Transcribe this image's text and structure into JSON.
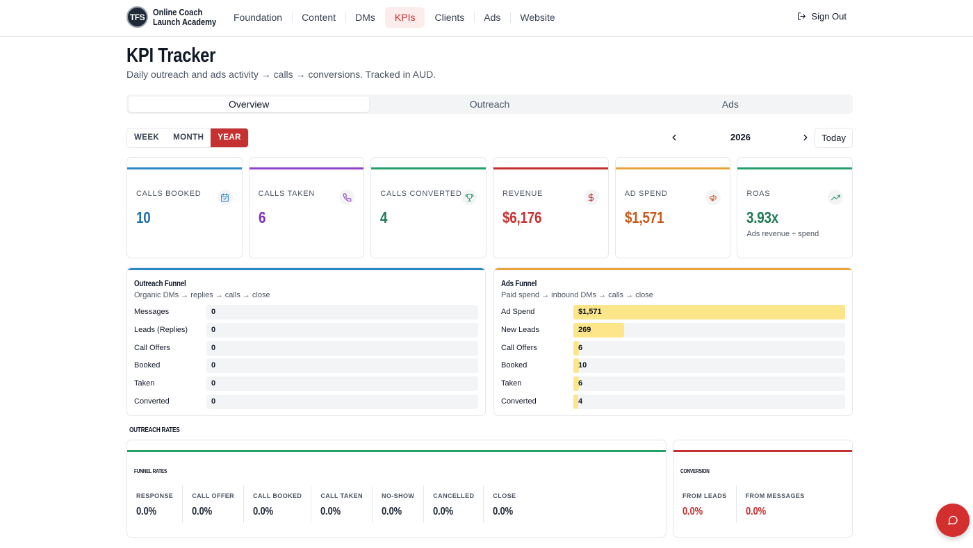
{
  "brand": {
    "badge": "TFS",
    "line1": "Online Coach",
    "line2": "Launch Academy"
  },
  "nav": [
    "Foundation",
    "Content",
    "DMs",
    "KPIs",
    "Clients",
    "Ads",
    "Website"
  ],
  "nav_active": "KPIs",
  "signout_label": "Sign Out",
  "page": {
    "title": "KPI Tracker",
    "subtitle": "Daily outreach and ads activity → calls → conversions. Tracked in AUD."
  },
  "tabs": [
    "Overview",
    "Outreach",
    "Ads"
  ],
  "tab_active": "Overview",
  "period": {
    "options": [
      "WEEK",
      "MONTH",
      "YEAR"
    ],
    "active": "YEAR",
    "year": "2026",
    "today_label": "Today"
  },
  "kpis": [
    {
      "label": "CALLS BOOKED",
      "value": "10",
      "color": "#2b8ac6",
      "icon": "calendar-check-icon",
      "note": ""
    },
    {
      "label": "CALLS TAKEN",
      "value": "6",
      "color": "#8e44c9",
      "icon": "phone-icon",
      "note": ""
    },
    {
      "label": "CALLS CONVERTED",
      "value": "4",
      "color": "#25a06a",
      "icon": "trophy-icon",
      "note": ""
    },
    {
      "label": "REVENUE",
      "value": "$6,176",
      "color": "#c53030",
      "icon": "dollar-icon",
      "note": ""
    },
    {
      "label": "AD SPEND",
      "value": "$1,571",
      "color": "#e8a33c",
      "icon": "megaphone-icon",
      "note": ""
    },
    {
      "label": "ROAS",
      "value": "3.93x",
      "color": "#25a06a",
      "icon": "trending-up-icon",
      "note": "Ads revenue ÷ spend"
    }
  ],
  "kpi_value_colors": [
    "#1f6fb0",
    "#7b2fb5",
    "#1e7a55",
    "#c53030",
    "#c8581a",
    "#1e7a55"
  ],
  "outreach_funnel": {
    "title": "Outreach Funnel",
    "subtitle": "Organic DMs → replies → calls → close",
    "color": "#2b8ac6",
    "rows": [
      {
        "label": "Messages",
        "value": "0",
        "fill": 0
      },
      {
        "label": "Leads (Replies)",
        "value": "0",
        "fill": 0
      },
      {
        "label": "Call Offers",
        "value": "0",
        "fill": 0
      },
      {
        "label": "Booked",
        "value": "0",
        "fill": 0
      },
      {
        "label": "Taken",
        "value": "0",
        "fill": 0
      },
      {
        "label": "Converted",
        "value": "0",
        "fill": 0
      }
    ]
  },
  "ads_funnel": {
    "title": "Ads Funnel",
    "subtitle": "Paid spend → inbound DMs → calls → close",
    "color": "#e8a33c",
    "rows": [
      {
        "label": "Ad Spend",
        "value": "$1,571",
        "fill": 1.0
      },
      {
        "label": "New Leads",
        "value": "269",
        "fill": 0.171
      },
      {
        "label": "Call Offers",
        "value": "6",
        "fill": 0.004
      },
      {
        "label": "Booked",
        "value": "10",
        "fill": 0.006
      },
      {
        "label": "Taken",
        "value": "6",
        "fill": 0.004
      },
      {
        "label": "Converted",
        "value": "4",
        "fill": 0.003
      }
    ]
  },
  "rates_section_label": "OUTREACH RATES",
  "funnel_rates": {
    "title": "FUNNEL RATES",
    "color": "#25a06a",
    "items": [
      {
        "label": "RESPONSE",
        "value": "0.0%"
      },
      {
        "label": "CALL OFFER",
        "value": "0.0%"
      },
      {
        "label": "CALL BOOKED",
        "value": "0.0%"
      },
      {
        "label": "CALL TAKEN",
        "value": "0.0%"
      },
      {
        "label": "NO-SHOW",
        "value": "0.0%"
      },
      {
        "label": "CANCELLED",
        "value": "0.0%"
      },
      {
        "label": "CLOSE",
        "value": "0.0%"
      }
    ]
  },
  "conversion": {
    "title": "CONVERSION",
    "color": "#c53030",
    "items": [
      {
        "label": "FROM LEADS",
        "value": "0.0%"
      },
      {
        "label": "FROM MESSAGES",
        "value": "0.0%"
      }
    ]
  },
  "chat_button_icon": "chat-bubble-icon"
}
